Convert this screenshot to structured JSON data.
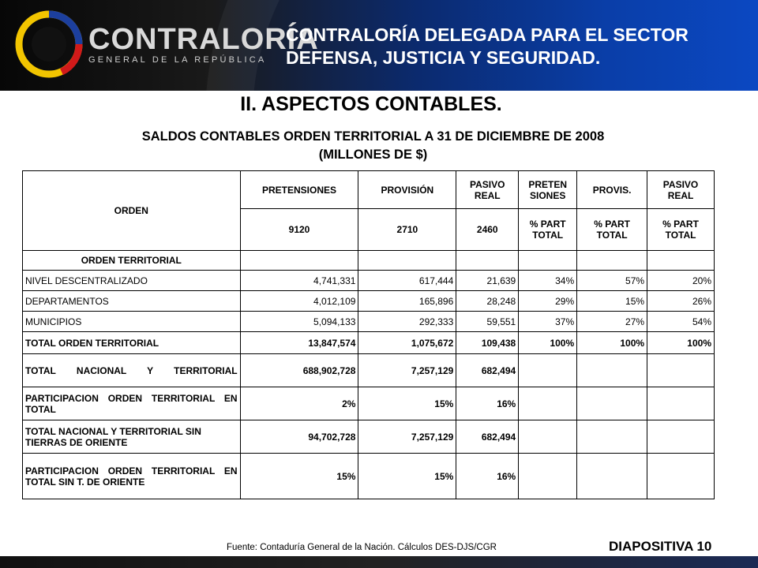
{
  "header": {
    "logo_name": "CONTRALORÍA",
    "logo_sub": "GENERAL DE LA REPÚBLICA",
    "title_line1": "CONTRALORÍA DELEGADA PARA EL SECTOR",
    "title_line2": "DEFENSA, JUSTICIA Y SEGURIDAD."
  },
  "section_title": "II. ASPECTOS CONTABLES.",
  "subtitle_line1": "SALDOS CONTABLES ORDEN TERRITORIAL A 31 DE DICIEMBRE DE 2008",
  "subtitle_line2": "(MILLONES DE $)",
  "table": {
    "orden_header": "ORDEN",
    "col_headers": [
      "PRETENSIONES",
      "PROVISIÓN",
      "PASIVO REAL",
      "PRETEN SIONES",
      "PROVIS.",
      "PASIVO REAL"
    ],
    "sub_headers": [
      "9120",
      "2710",
      "2460",
      "% PART TOTAL",
      "% PART TOTAL",
      "% PART TOTAL"
    ],
    "group_label": "ORDEN TERRITORIAL",
    "rows": [
      {
        "label": "NIVEL DESCENTRALIZADO",
        "values": [
          "4,741,331",
          "617,444",
          "21,639",
          "34%",
          "57%",
          "20%"
        ]
      },
      {
        "label": "DEPARTAMENTOS",
        "values": [
          "4,012,109",
          "165,896",
          "28,248",
          "29%",
          "15%",
          "26%"
        ]
      },
      {
        "label": "MUNICIPIOS",
        "values": [
          "5,094,133",
          "292,333",
          "59,551",
          "37%",
          "27%",
          "54%"
        ]
      },
      {
        "label": "TOTAL ORDEN TERRITORIAL",
        "values": [
          "13,847,574",
          "1,075,672",
          "109,438",
          "100%",
          "100%",
          "100%"
        ]
      },
      {
        "label": "TOTAL NACIONAL Y TERRITORIAL",
        "values": [
          "688,902,728",
          "7,257,129",
          "682,494",
          "",
          "",
          ""
        ]
      },
      {
        "label": "PARTICIPACION ORDEN TERRITORIAL EN TOTAL",
        "values": [
          "2%",
          "15%",
          "16%",
          "",
          "",
          ""
        ]
      },
      {
        "label": "TOTAL NACIONAL Y TERRITORIAL SIN TIERRAS DE ORIENTE",
        "values": [
          "94,702,728",
          "7,257,129",
          "682,494",
          "",
          "",
          ""
        ]
      },
      {
        "label": "PARTICIPACION ORDEN TERRITORIAL EN TOTAL SIN T. DE ORIENTE",
        "values": [
          "15%",
          "15%",
          "16%",
          "",
          "",
          ""
        ]
      }
    ]
  },
  "source": "Fuente: Contaduría General de la Nación. Cálculos DES-DJS/CGR",
  "slide_number": "DIAPOSITIVA 10",
  "colors": {
    "header_dark": "#070707",
    "header_blue": "#0b48c2",
    "logo_yellow": "#f2c500",
    "logo_blue": "#1c3f9e",
    "logo_red": "#d11a1a"
  }
}
